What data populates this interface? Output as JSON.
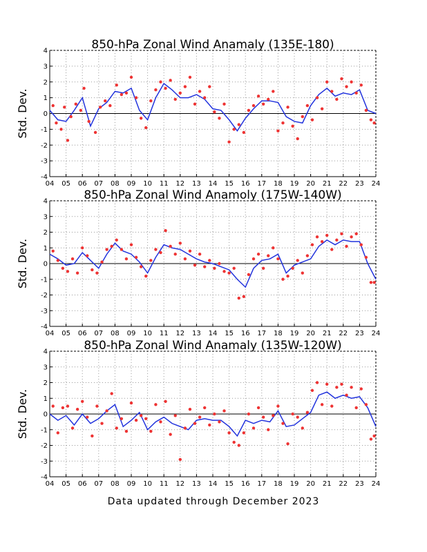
{
  "footer": "Data updated through December 2023",
  "colors": {
    "running_mean": "#2233dd",
    "monthly_points": "#ee3333",
    "zero_line": "#000000",
    "grid": "#999999"
  },
  "chart_data": [
    {
      "type": "line",
      "title": "850-hPa Zonal Wind Anamaly (135E-180)",
      "ylabel": "Std. Dev.",
      "xlabel": "",
      "xlim": [
        2004,
        2024
      ],
      "ylim": [
        -4,
        4
      ],
      "x_tick_labels": [
        "04",
        "05",
        "06",
        "07",
        "08",
        "09",
        "10",
        "11",
        "12",
        "13",
        "14",
        "15",
        "16",
        "17",
        "18",
        "19",
        "20",
        "21",
        "22",
        "23",
        "24"
      ],
      "y_ticks": [
        -4,
        -3,
        -2,
        -1,
        0,
        1,
        2,
        3,
        4
      ],
      "grid": true,
      "reference_line": 0,
      "series": [
        {
          "style": "line-blue",
          "x": [
            2004.0,
            2004.5,
            2005.0,
            2005.5,
            2006.0,
            2006.5,
            2007.0,
            2007.5,
            2008.0,
            2008.5,
            2009.0,
            2009.5,
            2010.0,
            2010.5,
            2011.0,
            2011.5,
            2012.0,
            2012.5,
            2013.0,
            2013.5,
            2014.0,
            2014.5,
            2015.0,
            2015.5,
            2016.0,
            2016.5,
            2017.0,
            2017.5,
            2018.0,
            2018.5,
            2019.0,
            2019.5,
            2020.0,
            2020.5,
            2021.0,
            2021.5,
            2022.0,
            2022.5,
            2023.0,
            2023.5,
            2024.0
          ],
          "values": [
            0.2,
            -0.4,
            -0.5,
            0.2,
            1.0,
            -0.8,
            0.3,
            0.7,
            1.4,
            1.3,
            1.6,
            0.2,
            -0.4,
            1.0,
            1.9,
            1.5,
            1.0,
            1.0,
            1.2,
            0.9,
            0.3,
            0.2,
            -0.4,
            -1.1,
            -0.3,
            0.3,
            0.8,
            0.8,
            0.7,
            -0.2,
            -0.5,
            -0.6,
            0.5,
            1.2,
            1.6,
            1.1,
            1.3,
            1.2,
            1.5,
            0.2,
            0.0
          ]
        },
        {
          "style": "points-red",
          "x": [
            2004.2,
            2004.4,
            2004.7,
            2004.9,
            2005.1,
            2005.3,
            2005.6,
            2005.9,
            2006.1,
            2006.4,
            2006.8,
            2007.1,
            2007.4,
            2007.7,
            2008.1,
            2008.4,
            2008.7,
            2009.0,
            2009.3,
            2009.6,
            2009.9,
            2010.2,
            2010.5,
            2010.8,
            2011.1,
            2011.4,
            2011.7,
            2012.0,
            2012.3,
            2012.6,
            2012.9,
            2013.2,
            2013.5,
            2013.8,
            2014.1,
            2014.4,
            2014.7,
            2015.0,
            2015.3,
            2015.6,
            2015.9,
            2016.2,
            2016.5,
            2016.8,
            2017.1,
            2017.4,
            2017.7,
            2018.0,
            2018.3,
            2018.6,
            2018.9,
            2019.2,
            2019.5,
            2019.8,
            2020.1,
            2020.4,
            2020.7,
            2021.0,
            2021.3,
            2021.6,
            2021.9,
            2022.2,
            2022.5,
            2022.8,
            2023.1,
            2023.4,
            2023.7,
            2023.9
          ],
          "values": [
            0.5,
            -0.6,
            -1.0,
            0.4,
            -1.7,
            -0.2,
            0.6,
            0.2,
            1.6,
            -0.5,
            -1.2,
            0.4,
            0.8,
            0.5,
            1.8,
            1.2,
            1.3,
            2.3,
            1.0,
            -0.3,
            -0.9,
            0.8,
            1.5,
            2.0,
            1.6,
            2.1,
            0.9,
            1.3,
            1.7,
            2.3,
            0.6,
            1.4,
            1.0,
            1.7,
            0.1,
            -0.3,
            0.6,
            -1.8,
            -1.0,
            -0.7,
            -1.2,
            0.2,
            0.5,
            1.1,
            0.6,
            0.9,
            1.4,
            -1.1,
            -0.6,
            0.4,
            -0.8,
            -1.6,
            -0.2,
            0.5,
            -0.4,
            1.0,
            0.3,
            2.0,
            1.4,
            0.9,
            2.2,
            1.7,
            2.0,
            1.3,
            1.8,
            0.2,
            -0.4,
            -0.6
          ]
        }
      ]
    },
    {
      "type": "line",
      "title": "850-hPa Zonal Wind Anamoly (175W-140W)",
      "ylabel": "Std. Dev.",
      "xlabel": "",
      "xlim": [
        2004,
        2024
      ],
      "ylim": [
        -4,
        4
      ],
      "x_tick_labels": [
        "04",
        "05",
        "06",
        "07",
        "08",
        "09",
        "10",
        "11",
        "12",
        "13",
        "14",
        "15",
        "16",
        "17",
        "18",
        "19",
        "20",
        "21",
        "22",
        "23",
        "24"
      ],
      "y_ticks": [
        -4,
        -3,
        -2,
        -1,
        0,
        1,
        2,
        3,
        4
      ],
      "grid": true,
      "reference_line": 0,
      "series": [
        {
          "style": "line-blue",
          "x": [
            2004.0,
            2004.5,
            2005.0,
            2005.5,
            2006.0,
            2006.5,
            2007.0,
            2007.5,
            2008.0,
            2008.5,
            2009.0,
            2009.5,
            2010.0,
            2010.5,
            2011.0,
            2011.5,
            2012.0,
            2012.5,
            2013.0,
            2013.5,
            2014.0,
            2014.5,
            2015.0,
            2015.5,
            2016.0,
            2016.5,
            2017.0,
            2017.5,
            2018.0,
            2018.5,
            2019.0,
            2019.5,
            2020.0,
            2020.5,
            2021.0,
            2021.5,
            2022.0,
            2022.5,
            2023.0,
            2023.5,
            2024.0
          ],
          "values": [
            0.6,
            0.3,
            -0.1,
            0.0,
            0.7,
            0.2,
            -0.3,
            0.6,
            1.3,
            0.8,
            0.6,
            0.1,
            -0.6,
            0.4,
            1.2,
            1.0,
            0.9,
            0.6,
            0.3,
            0.1,
            0.0,
            -0.2,
            -0.4,
            -1.0,
            -1.5,
            -0.3,
            0.2,
            0.3,
            0.6,
            -0.6,
            -0.1,
            0.1,
            0.3,
            1.1,
            1.5,
            1.2,
            1.5,
            1.4,
            1.4,
            0.0,
            -1.0
          ]
        },
        {
          "style": "points-red",
          "x": [
            2004.2,
            2004.5,
            2004.8,
            2005.1,
            2005.4,
            2005.7,
            2006.0,
            2006.3,
            2006.6,
            2006.9,
            2007.2,
            2007.5,
            2007.8,
            2008.1,
            2008.4,
            2008.7,
            2009.0,
            2009.3,
            2009.6,
            2009.9,
            2010.2,
            2010.5,
            2010.8,
            2011.1,
            2011.4,
            2011.7,
            2012.0,
            2012.3,
            2012.6,
            2012.9,
            2013.2,
            2013.5,
            2013.8,
            2014.1,
            2014.4,
            2014.7,
            2015.0,
            2015.3,
            2015.6,
            2015.9,
            2016.2,
            2016.5,
            2016.8,
            2017.1,
            2017.4,
            2017.7,
            2018.0,
            2018.3,
            2018.6,
            2018.9,
            2019.2,
            2019.5,
            2019.8,
            2020.1,
            2020.4,
            2020.7,
            2021.0,
            2021.3,
            2021.6,
            2021.9,
            2022.2,
            2022.5,
            2022.8,
            2023.1,
            2023.4,
            2023.7,
            2023.9
          ],
          "values": [
            0.8,
            0.2,
            -0.3,
            -0.5,
            0.3,
            -0.6,
            1.0,
            0.5,
            -0.4,
            -0.6,
            0.1,
            0.9,
            1.1,
            1.5,
            0.9,
            0.3,
            1.2,
            0.4,
            -0.2,
            -0.8,
            0.2,
            0.9,
            0.7,
            2.1,
            1.1,
            0.6,
            1.3,
            0.3,
            0.8,
            -0.1,
            0.6,
            -0.2,
            0.2,
            -0.3,
            0.0,
            -0.5,
            -0.6,
            -0.3,
            -2.2,
            -2.1,
            -0.7,
            0.3,
            0.6,
            -0.3,
            0.5,
            1.0,
            0.3,
            -1.0,
            -0.8,
            -0.3,
            0.2,
            -0.6,
            0.5,
            1.2,
            1.7,
            1.4,
            1.8,
            0.9,
            1.5,
            1.9,
            1.1,
            1.7,
            1.9,
            1.2,
            0.4,
            -1.2,
            -1.2
          ]
        }
      ]
    },
    {
      "type": "line",
      "title": "850-hPa Zonal Wind Anamaly (135W-120W)",
      "ylabel": "Std. Dev.",
      "xlabel": "",
      "xlim": [
        2004,
        2024
      ],
      "ylim": [
        -4,
        4
      ],
      "x_tick_labels": [
        "04",
        "05",
        "06",
        "07",
        "08",
        "09",
        "10",
        "11",
        "12",
        "13",
        "14",
        "15",
        "16",
        "17",
        "18",
        "19",
        "20",
        "21",
        "22",
        "23",
        "24"
      ],
      "y_ticks": [
        -4,
        -3,
        -2,
        -1,
        0,
        1,
        2,
        3,
        4
      ],
      "grid": true,
      "reference_line": 0,
      "series": [
        {
          "style": "line-blue",
          "x": [
            2004.0,
            2004.5,
            2005.0,
            2005.5,
            2006.0,
            2006.5,
            2007.0,
            2007.5,
            2008.0,
            2008.5,
            2009.0,
            2009.5,
            2010.0,
            2010.5,
            2011.0,
            2011.5,
            2012.0,
            2012.5,
            2013.0,
            2013.5,
            2014.0,
            2014.5,
            2015.0,
            2015.5,
            2016.0,
            2016.5,
            2017.0,
            2017.5,
            2018.0,
            2018.5,
            2019.0,
            2019.5,
            2020.0,
            2020.5,
            2021.0,
            2021.5,
            2022.0,
            2022.5,
            2023.0,
            2023.5,
            2024.0
          ],
          "values": [
            0.0,
            -0.4,
            -0.1,
            -0.7,
            0.0,
            -0.6,
            -0.3,
            0.2,
            0.6,
            -0.8,
            -0.4,
            0.1,
            -1.0,
            -0.5,
            -0.2,
            -0.6,
            -0.8,
            -1.0,
            -0.4,
            -0.3,
            -0.4,
            -0.4,
            -0.8,
            -1.4,
            -0.4,
            -0.6,
            -0.4,
            -0.5,
            0.2,
            -0.8,
            -0.7,
            -0.3,
            0.1,
            1.2,
            1.4,
            1.0,
            1.2,
            1.0,
            1.1,
            0.4,
            -0.8
          ]
        },
        {
          "style": "points-red",
          "x": [
            2004.2,
            2004.5,
            2004.8,
            2005.1,
            2005.4,
            2005.7,
            2006.0,
            2006.3,
            2006.6,
            2006.9,
            2007.2,
            2007.5,
            2007.8,
            2008.1,
            2008.4,
            2008.7,
            2009.0,
            2009.3,
            2009.6,
            2009.9,
            2010.2,
            2010.5,
            2010.8,
            2011.1,
            2011.4,
            2011.7,
            2012.0,
            2012.3,
            2012.6,
            2012.9,
            2013.2,
            2013.5,
            2013.8,
            2014.1,
            2014.4,
            2014.7,
            2015.0,
            2015.3,
            2015.6,
            2015.9,
            2016.2,
            2016.5,
            2016.8,
            2017.1,
            2017.4,
            2017.7,
            2018.0,
            2018.3,
            2018.6,
            2018.9,
            2019.2,
            2019.5,
            2019.8,
            2020.1,
            2020.4,
            2020.7,
            2021.0,
            2021.3,
            2021.6,
            2021.9,
            2022.2,
            2022.5,
            2022.8,
            2023.1,
            2023.4,
            2023.7,
            2023.9
          ],
          "values": [
            0.5,
            -1.2,
            0.4,
            0.5,
            -0.9,
            0.3,
            0.8,
            -0.2,
            -1.4,
            0.5,
            -0.6,
            0.2,
            1.3,
            -0.9,
            -0.3,
            -1.1,
            0.7,
            -0.4,
            -0.1,
            -0.3,
            -1.1,
            0.6,
            -0.5,
            0.8,
            -1.3,
            -0.1,
            -2.9,
            -0.9,
            0.3,
            -0.6,
            -0.2,
            0.4,
            -0.7,
            0.0,
            -0.5,
            0.2,
            -1.2,
            -1.8,
            -2.0,
            -1.2,
            0.0,
            -0.9,
            0.4,
            -0.2,
            -1.0,
            -0.1,
            0.5,
            -0.6,
            -1.9,
            0.0,
            -0.2,
            -0.9,
            0.1,
            1.5,
            2.0,
            0.6,
            1.9,
            0.5,
            1.7,
            1.9,
            1.2,
            1.7,
            0.4,
            1.6,
            0.6,
            -1.6,
            -1.4
          ]
        }
      ]
    }
  ]
}
